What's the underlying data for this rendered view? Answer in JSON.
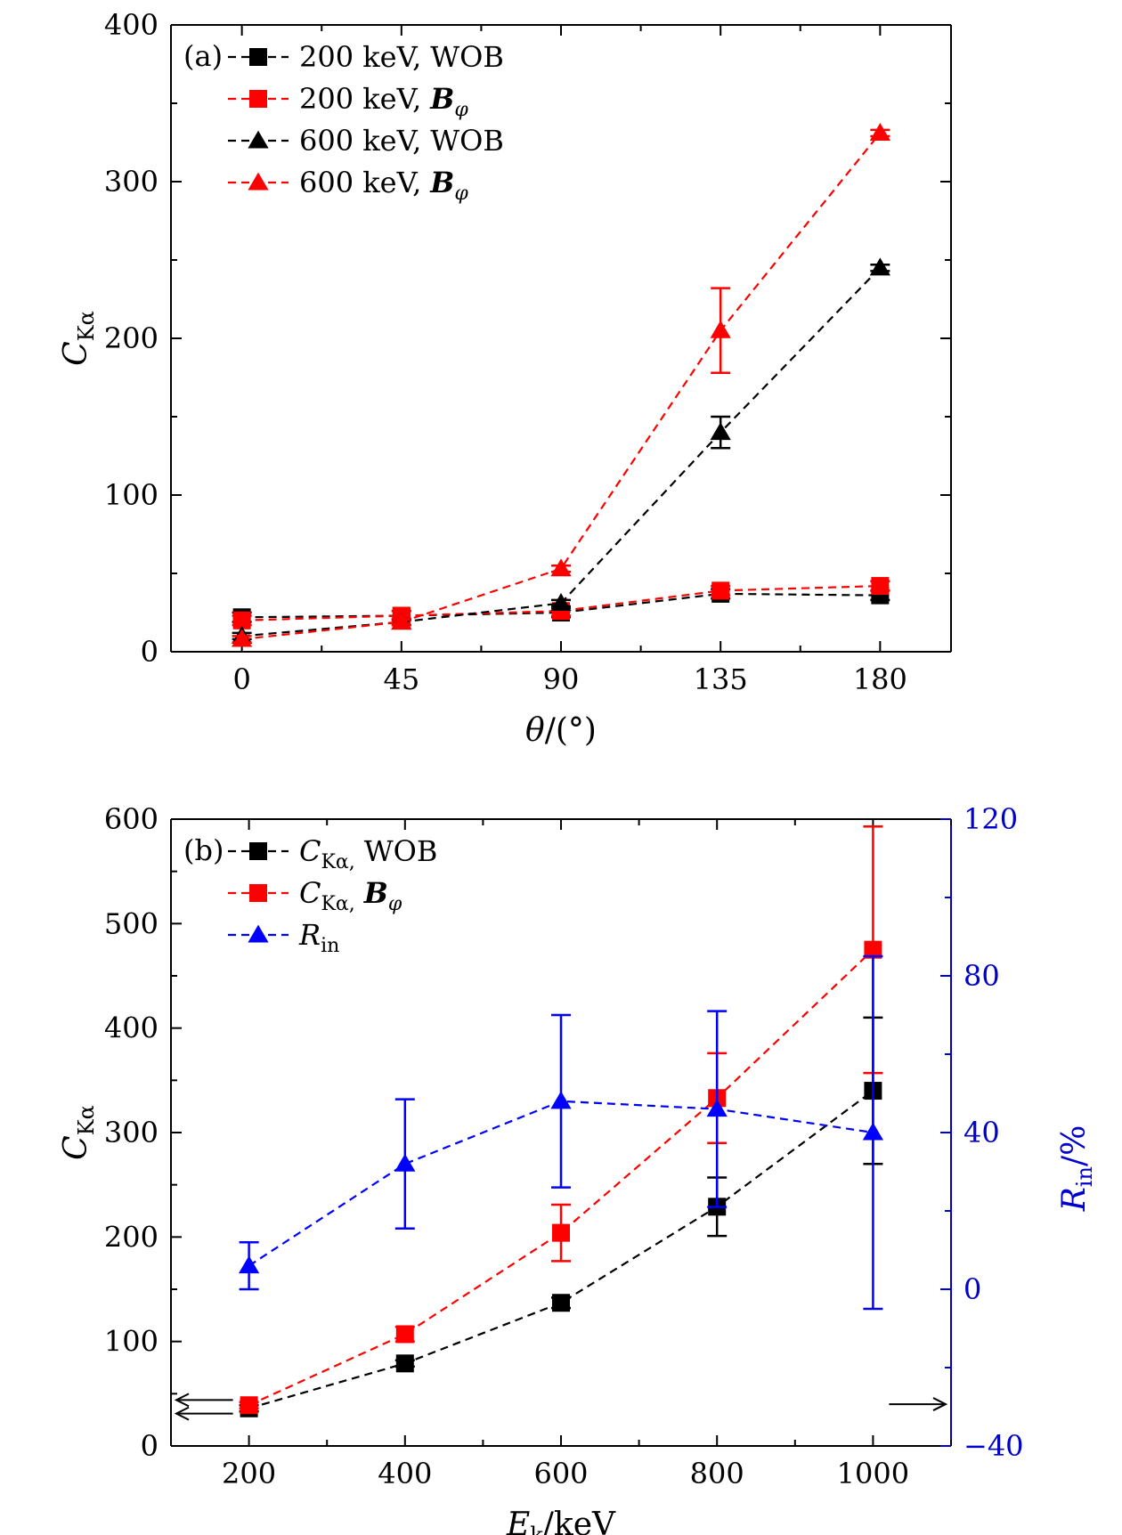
{
  "chart_data": [
    {
      "type": "line",
      "panel_label": "(a)",
      "xlabel": "θ/(°)",
      "ylabel": "C_Kα",
      "xlim": [
        -20,
        200
      ],
      "ylim": [
        0,
        400
      ],
      "x_ticks": [
        0,
        45,
        90,
        135,
        180
      ],
      "y_ticks": [
        0,
        100,
        200,
        300,
        400
      ],
      "legend_position": "top-left",
      "series": [
        {
          "name": "200 keV, WOB",
          "color": "#000000",
          "marker": "square",
          "x": [
            0,
            45,
            90,
            135,
            180
          ],
          "y": [
            22,
            23,
            25,
            37,
            36
          ],
          "err": [
            3,
            3,
            3,
            3,
            3
          ]
        },
        {
          "name": "200 keV, B_φ",
          "color": "#ff0000",
          "marker": "square",
          "x": [
            0,
            45,
            90,
            135,
            180
          ],
          "y": [
            20,
            23,
            26,
            39,
            42
          ],
          "err": [
            3,
            3,
            3,
            3,
            3
          ]
        },
        {
          "name": "600 keV, WOB",
          "color": "#000000",
          "marker": "triangle",
          "x": [
            0,
            45,
            90,
            135,
            180
          ],
          "y": [
            10,
            19,
            31,
            140,
            245
          ],
          "err": [
            2,
            2,
            2,
            10,
            2
          ]
        },
        {
          "name": "600 keV, B_φ",
          "color": "#ff0000",
          "marker": "triangle",
          "x": [
            0,
            45,
            90,
            135,
            180
          ],
          "y": [
            8,
            19,
            53,
            205,
            331
          ],
          "err": [
            2,
            2,
            2,
            27,
            2
          ]
        }
      ],
      "legend": [
        {
          "energy": "200 keV,",
          "cond": "WOB",
          "sym": "",
          "color": "#000000",
          "marker": "square"
        },
        {
          "energy": "200 keV,",
          "cond": "B",
          "sym": "φ",
          "color": "#ff0000",
          "marker": "square"
        },
        {
          "energy": "600 keV,",
          "cond": "WOB",
          "sym": "",
          "color": "#000000",
          "marker": "triangle"
        },
        {
          "energy": "600 keV,",
          "cond": "B",
          "sym": "φ",
          "color": "#ff0000",
          "marker": "triangle"
        }
      ]
    },
    {
      "type": "line",
      "panel_label": "(b)",
      "xlabel": "E_k/keV",
      "ylabel": "C_Kα",
      "y2label": "R_in/%",
      "xlim": [
        100,
        1100
      ],
      "ylim": [
        0,
        600
      ],
      "y2lim": [
        -40,
        120
      ],
      "x_ticks": [
        200,
        400,
        600,
        800,
        1000
      ],
      "y_ticks": [
        0,
        100,
        200,
        300,
        400,
        500,
        600
      ],
      "y2_ticks": [
        -40,
        0,
        40,
        80,
        120
      ],
      "y2_color": "#0000cc",
      "legend_position": "top-left",
      "series": [
        {
          "name": "C_Kα, WOB",
          "axis": "left",
          "color": "#000000",
          "marker": "square",
          "x": [
            200,
            400,
            600,
            800,
            1000
          ],
          "y": [
            36,
            79,
            137,
            229,
            340
          ],
          "err": [
            3,
            3,
            5,
            28,
            70
          ]
        },
        {
          "name": "C_Kα, B_φ",
          "axis": "left",
          "color": "#ff0000",
          "marker": "square",
          "x": [
            200,
            400,
            600,
            800,
            1000
          ],
          "y": [
            39,
            107,
            204,
            333,
            475
          ],
          "err": [
            3,
            7,
            27,
            43,
            118
          ]
        },
        {
          "name": "R_in",
          "axis": "right",
          "color": "#0000ff",
          "marker": "triangle",
          "x": [
            200,
            400,
            600,
            800,
            1000
          ],
          "y": [
            6,
            32,
            48,
            46,
            40
          ],
          "err": [
            6,
            16.5,
            22,
            25,
            45
          ]
        }
      ],
      "legend": [
        {
          "sub": "Kα,",
          "cond": "WOB",
          "color": "#000000",
          "marker": "square"
        },
        {
          "sub": "Kα,",
          "cond": "B",
          "sym": "φ",
          "color": "#ff0000",
          "marker": "square"
        },
        {
          "sub": "in",
          "color": "#0000ff",
          "marker": "triangle"
        }
      ],
      "annotations": [
        {
          "type": "arrow",
          "direction": "left",
          "points_to_axis": "left",
          "near": [
            200,
            44
          ]
        },
        {
          "type": "arrow",
          "direction": "left",
          "points_to_axis": "left",
          "near": [
            200,
            31
          ]
        },
        {
          "type": "arrow",
          "direction": "right",
          "points_to_axis": "right",
          "near": [
            1000,
            40
          ]
        }
      ]
    }
  ]
}
